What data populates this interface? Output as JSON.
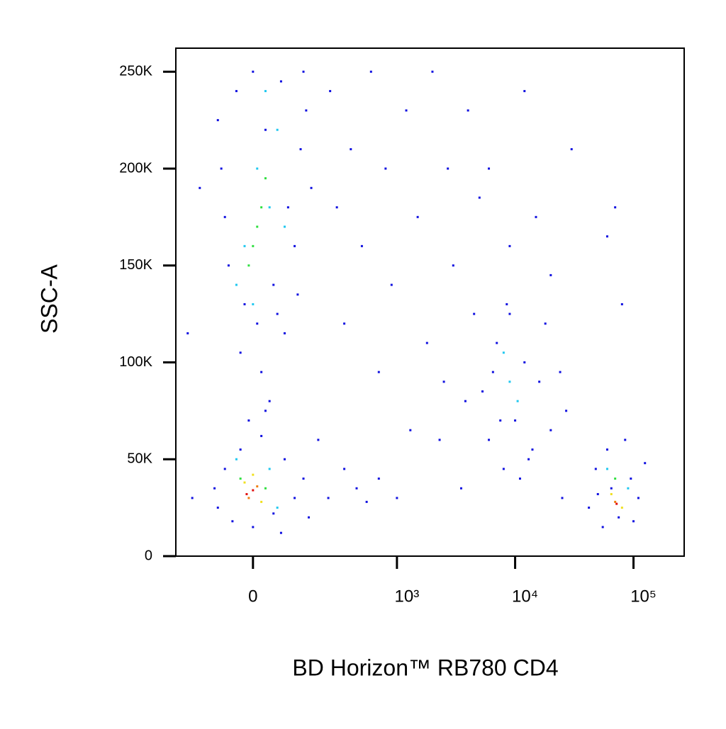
{
  "chart_data": {
    "type": "scatter",
    "x_label": "BD Horizon™ RB780 CD4",
    "y_label": "SSC-A",
    "xscale": "arcsinh",
    "xlim": [
      -260,
      268000
    ],
    "ylim": [
      0,
      262144
    ],
    "xticks": [
      0,
      {
        "value": 1000,
        "label": "10³"
      },
      {
        "value": 10000,
        "label": "10⁴"
      },
      {
        "value": 100000,
        "label": "10⁵"
      }
    ],
    "yticks": [
      0,
      {
        "value": 50000,
        "label": "50K"
      },
      {
        "value": 100000,
        "label": "100K"
      },
      {
        "value": 150000,
        "label": "150K"
      },
      {
        "value": 200000,
        "label": "200K"
      },
      {
        "value": 250000,
        "label": "250K"
      }
    ],
    "series": [
      {
        "color": "#1010e0",
        "x": [
          -80,
          -60,
          -40,
          -20,
          0,
          10,
          30,
          50,
          70,
          90,
          110,
          130,
          150,
          170,
          -70,
          -30,
          20,
          60,
          120,
          140,
          -90,
          80,
          40,
          -10,
          -90,
          -70,
          -50,
          -30,
          0,
          20,
          50,
          80,
          110,
          140,
          160,
          -100,
          30,
          70,
          5300,
          6000,
          7000,
          8000,
          9000,
          10000,
          11000,
          12000,
          14000,
          16000,
          18000,
          20000,
          24000,
          27000,
          6500,
          8500,
          13000,
          7500,
          42000,
          48000,
          55000,
          60000,
          65000,
          75000,
          85000,
          95000,
          110000,
          125000,
          50000,
          100000,
          200,
          260,
          300,
          350,
          400,
          450,
          500,
          600,
          700,
          800,
          900,
          1000,
          1200,
          1500,
          1800,
          2000,
          2300,
          2700,
          3000,
          3500,
          4000,
          4500,
          5000,
          6000,
          9000,
          12000,
          15000,
          20000,
          25000,
          30000,
          70000,
          60000,
          80000,
          250,
          350,
          550,
          700,
          1300,
          2500,
          3800,
          -200,
          -180,
          -150
        ],
        "y": [
          200000,
          150000,
          240000,
          130000,
          250000,
          120000,
          220000,
          140000,
          245000,
          180000,
          160000,
          210000,
          230000,
          190000,
          175000,
          105000,
          95000,
          125000,
          135000,
          250000,
          225000,
          115000,
          80000,
          70000,
          25000,
          45000,
          18000,
          55000,
          15000,
          62000,
          22000,
          50000,
          30000,
          40000,
          20000,
          35000,
          75000,
          12000,
          85000,
          60000,
          110000,
          45000,
          125000,
          70000,
          40000,
          100000,
          55000,
          90000,
          120000,
          65000,
          95000,
          75000,
          95000,
          130000,
          50000,
          70000,
          25000,
          45000,
          15000,
          55000,
          35000,
          20000,
          60000,
          40000,
          30000,
          48000,
          32000,
          18000,
          60000,
          240000,
          180000,
          120000,
          210000,
          35000,
          160000,
          250000,
          95000,
          200000,
          140000,
          30000,
          230000,
          175000,
          110000,
          250000,
          60000,
          200000,
          150000,
          35000,
          230000,
          125000,
          185000,
          200000,
          160000,
          240000,
          175000,
          145000,
          30000,
          210000,
          180000,
          165000,
          130000,
          30000,
          45000,
          28000,
          40000,
          65000,
          90000,
          80000,
          115000,
          30000,
          190000
        ]
      },
      {
        "color": "#20c8f0",
        "x": [
          -20,
          10,
          40,
          60,
          -40,
          80,
          0,
          30,
          -40,
          40,
          60,
          9000,
          10500,
          8000,
          60000,
          90000
        ],
        "y": [
          160000,
          200000,
          180000,
          220000,
          140000,
          170000,
          130000,
          240000,
          50000,
          45000,
          25000,
          90000,
          80000,
          105000,
          45000,
          35000
        ]
      },
      {
        "color": "#30e040",
        "x": [
          0,
          20,
          -10,
          30,
          10,
          -30,
          30,
          70000
        ],
        "y": [
          160000,
          180000,
          150000,
          195000,
          170000,
          40000,
          35000,
          40000
        ]
      },
      {
        "color": "#f0e020",
        "x": [
          -20,
          20,
          0,
          65000,
          80000
        ],
        "y": [
          38000,
          28000,
          42000,
          32000,
          25000
        ]
      },
      {
        "color": "#f08010",
        "x": [
          -10,
          10,
          70000
        ],
        "y": [
          30000,
          36000,
          28000
        ]
      },
      {
        "color": "#e01010",
        "x": [
          -15,
          0,
          72000
        ],
        "y": [
          32000,
          34000,
          27000
        ]
      }
    ]
  }
}
